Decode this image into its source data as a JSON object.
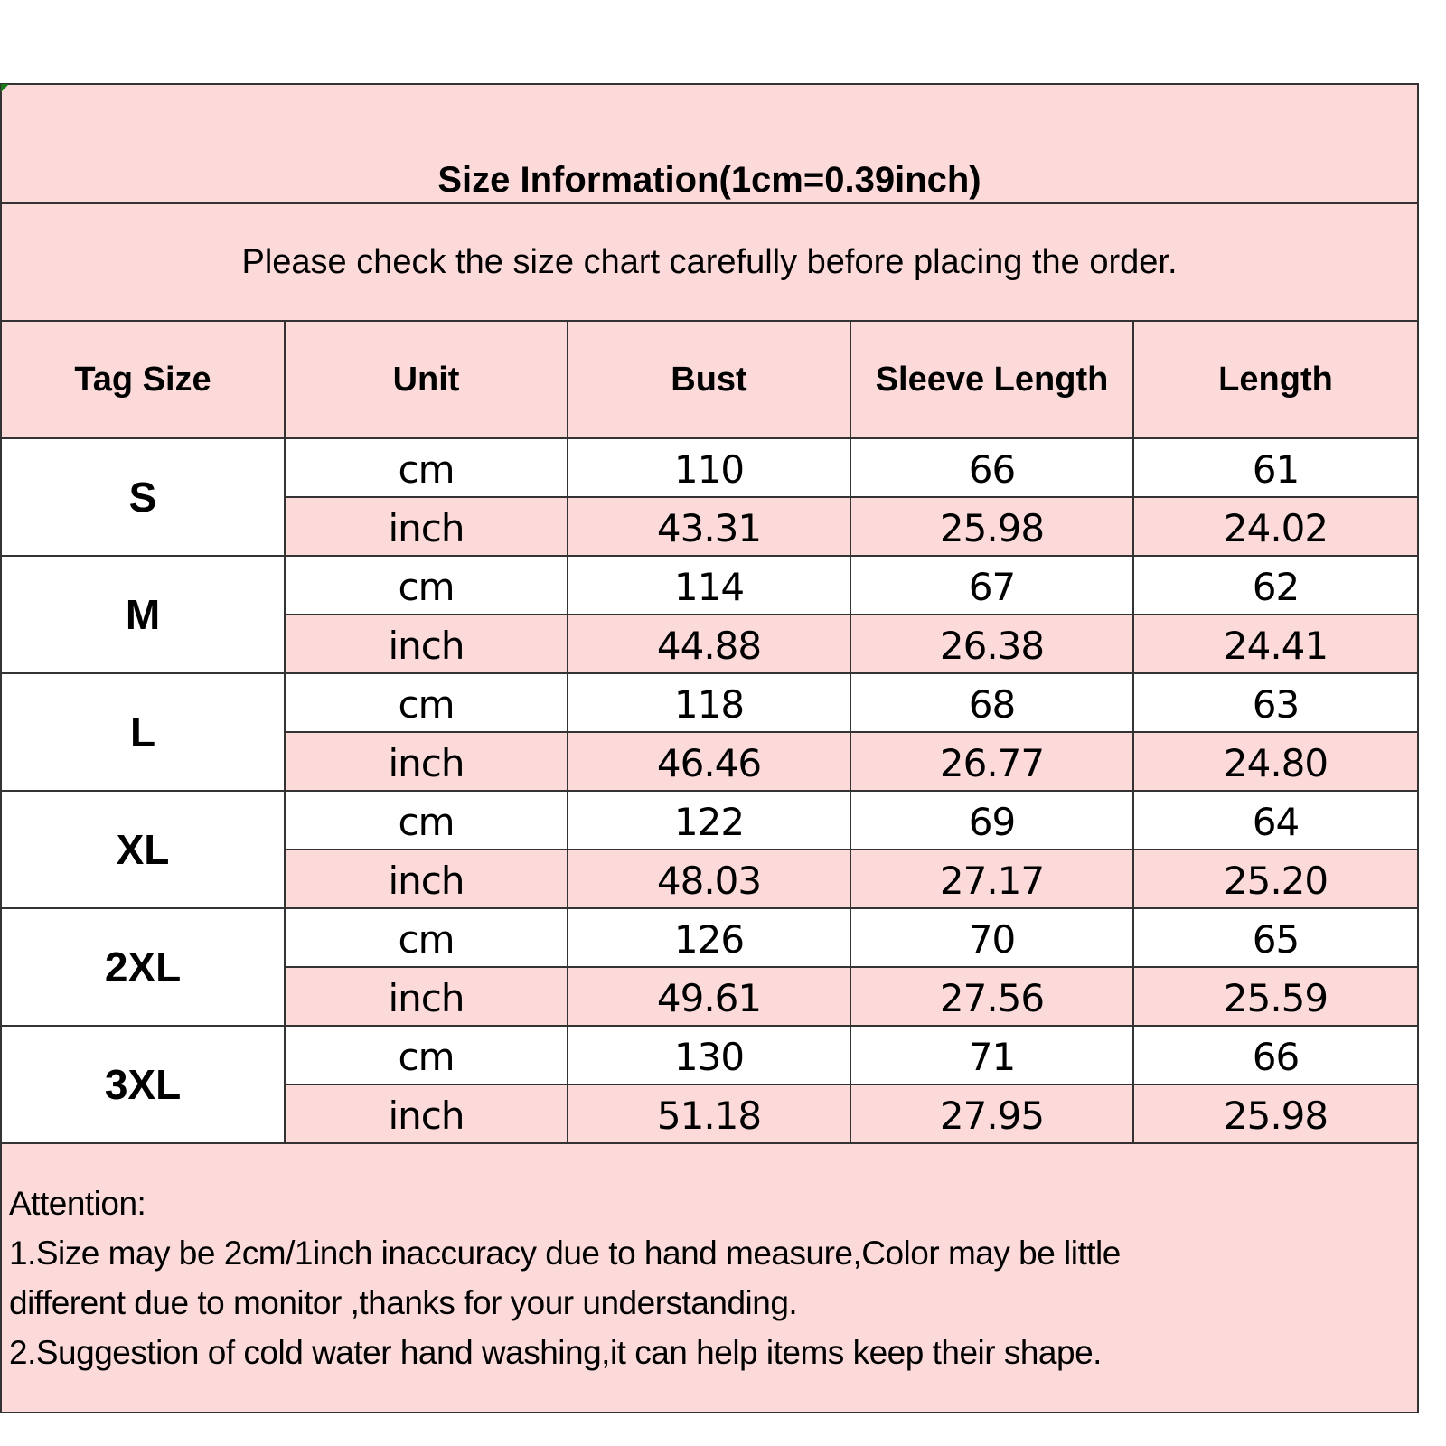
{
  "title": "Size Information(1cm=0.39inch)",
  "subtitle": "Please check the size chart carefully before placing the order.",
  "headers": [
    "Tag Size",
    "Unit",
    "Bust",
    "Sleeve Length",
    "Length"
  ],
  "rows": [
    {
      "size": "S",
      "cm": [
        "cm",
        "110",
        "66",
        "61"
      ],
      "inch": [
        "inch",
        "43.31",
        "25.98",
        "24.02"
      ]
    },
    {
      "size": "M",
      "cm": [
        "cm",
        "114",
        "67",
        "62"
      ],
      "inch": [
        "inch",
        "44.88",
        "26.38",
        "24.41"
      ]
    },
    {
      "size": "L",
      "cm": [
        "cm",
        "118",
        "68",
        "63"
      ],
      "inch": [
        "inch",
        "46.46",
        "26.77",
        "24.80"
      ]
    },
    {
      "size": "XL",
      "cm": [
        "cm",
        "122",
        "69",
        "64"
      ],
      "inch": [
        "inch",
        "48.03",
        "27.17",
        "25.20"
      ]
    },
    {
      "size": "2XL",
      "cm": [
        "cm",
        "126",
        "70",
        "65"
      ],
      "inch": [
        "inch",
        "49.61",
        "27.56",
        "25.59"
      ]
    },
    {
      "size": "3XL",
      "cm": [
        "cm",
        "130",
        "71",
        "66"
      ],
      "inch": [
        "inch",
        "51.18",
        "27.95",
        "25.98"
      ]
    }
  ],
  "attention": {
    "heading": "Attention:",
    "lines": [
      "1.Size may be 2cm/1inch inaccuracy due to hand measure,Color may be little",
      "different due to monitor ,thanks for your understanding.",
      "2.Suggestion of cold water hand washing,it can help items keep their shape."
    ]
  },
  "colors": {
    "header_bg": "#FCDADA",
    "row_bg": "#FFFFFF",
    "border": "#333333"
  }
}
